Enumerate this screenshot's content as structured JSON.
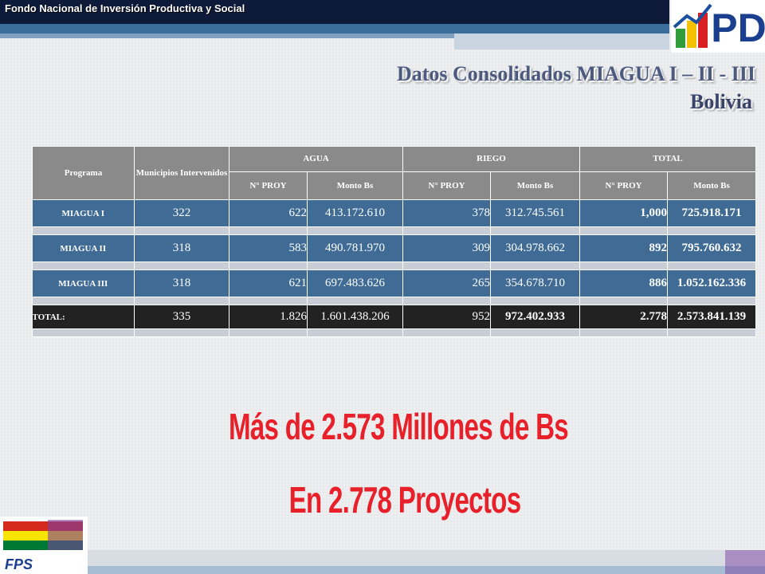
{
  "header": {
    "org": "Fondo Nacional de Inversión Productiva y Social",
    "logo": "PD"
  },
  "title": "Datos Consolidados MIAGUA I – II - III",
  "subtitle": "Bolivia",
  "table": {
    "header_top": [
      "Programa",
      "Municipios Intervenidos",
      "AGUA",
      "RIEGO",
      "TOTAL"
    ],
    "header_sub": [
      "N° PROY",
      "Monto Bs",
      "N° PROY",
      "Monto Bs",
      "N° PROY",
      "Monto Bs"
    ],
    "rows": [
      [
        "MIAGUA I",
        "322",
        "622",
        "413.172.610",
        "378",
        "312.745.561",
        "1,000",
        "725.918.171"
      ],
      [
        "MIAGUA II",
        "318",
        "583",
        "490.781.970",
        "309",
        "304.978.662",
        "892",
        "795.760.632"
      ],
      [
        "MIAGUA III",
        "318",
        "621",
        "697.483.626",
        "265",
        "354.678.710",
        "886",
        "1.052.162.336"
      ],
      [
        "TOTAL:",
        "335",
        "1.826",
        "1.601.438.206",
        "952",
        "972.402.933",
        "2.778",
        "2.573.841.139"
      ]
    ]
  },
  "highlight_1": "Más de 2.573 Millones de Bs",
  "highlight_2": "En 2.778 Proyectos",
  "footer": {
    "logo": "FPS"
  }
}
